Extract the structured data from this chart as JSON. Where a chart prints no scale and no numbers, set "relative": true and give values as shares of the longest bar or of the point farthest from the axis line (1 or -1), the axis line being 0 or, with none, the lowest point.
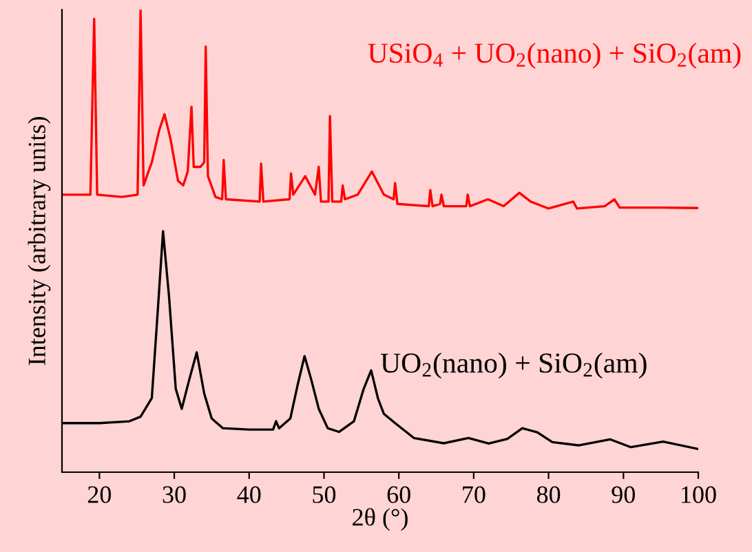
{
  "chart_data": {
    "type": "line",
    "relative": true,
    "xlabel": "2θ (°)",
    "ylabel": "Intensity (arbitrary units)",
    "xlim": [
      15,
      100
    ],
    "xticks": [
      20,
      30,
      40,
      50,
      60,
      70,
      80,
      90,
      100
    ],
    "tick_labels": "x",
    "grid": false,
    "legend": false,
    "marker": "none",
    "line_style": "solid",
    "series": [
      {
        "name": "USiO$_{4}$ + UO$_{2}$(nano) + SiO$_{2}$(am)",
        "color": "#ff0000",
        "x": [
          15,
          18.8,
          19.3,
          19.7,
          23,
          25.1,
          25.5,
          25.9,
          27,
          28.0,
          28.7,
          29.5,
          30.5,
          31.2,
          31.8,
          32.3,
          32.6,
          33.5,
          34.0,
          34.2,
          34.5,
          35.5,
          36.4,
          36.6,
          36.9,
          41.4,
          41.6,
          41.9,
          45.4,
          45.6,
          45.9,
          47.5,
          48.8,
          49.3,
          49.6,
          50.6,
          50.8,
          51.1,
          52.3,
          52.5,
          52.8,
          54.5,
          56.4,
          58,
          59.3,
          59.5,
          59.8,
          64,
          64.2,
          64.5,
          65.5,
          65.7,
          66,
          69,
          69.2,
          69.5,
          71.9,
          74,
          76.1,
          77.6,
          80,
          83.3,
          83.8,
          87.5,
          88.8,
          89.5,
          95,
          100
        ],
        "values": [
          0.6,
          0.6,
          0.98,
          0.6,
          0.595,
          0.6,
          1.0,
          0.62,
          0.67,
          0.74,
          0.774,
          0.72,
          0.63,
          0.62,
          0.65,
          0.79,
          0.66,
          0.66,
          0.67,
          0.92,
          0.64,
          0.595,
          0.59,
          0.675,
          0.59,
          0.585,
          0.667,
          0.585,
          0.59,
          0.646,
          0.6,
          0.64,
          0.6,
          0.66,
          0.585,
          0.585,
          0.77,
          0.585,
          0.585,
          0.62,
          0.59,
          0.6,
          0.65,
          0.6,
          0.59,
          0.625,
          0.58,
          0.575,
          0.61,
          0.575,
          0.58,
          0.6,
          0.575,
          0.575,
          0.6,
          0.575,
          0.59,
          0.575,
          0.604,
          0.585,
          0.57,
          0.585,
          0.57,
          0.575,
          0.59,
          0.572,
          0.572,
          0.571
        ]
      },
      {
        "name": "UO$_{2}$(nano) + SiO$_{2}$(am)",
        "color": "#000000",
        "x": [
          15,
          20,
          24,
          25.5,
          27,
          27.8,
          28.5,
          29.3,
          30.2,
          31,
          32,
          33,
          34,
          35,
          36.5,
          40,
          43.2,
          43.6,
          44,
          45.5,
          46.5,
          47.4,
          48.3,
          49.3,
          50.5,
          52,
          54,
          55.3,
          56.3,
          57.2,
          58,
          59.5,
          62,
          66,
          69.3,
          72,
          74.5,
          76.5,
          78.5,
          80.5,
          84,
          88.2,
          91,
          95.3,
          100
        ],
        "values": [
          0.106,
          0.106,
          0.11,
          0.12,
          0.16,
          0.35,
          0.521,
          0.38,
          0.18,
          0.137,
          0.2,
          0.259,
          0.17,
          0.116,
          0.095,
          0.092,
          0.092,
          0.11,
          0.095,
          0.116,
          0.19,
          0.251,
          0.2,
          0.137,
          0.095,
          0.087,
          0.11,
          0.18,
          0.22,
          0.16,
          0.126,
          0.106,
          0.074,
          0.0625,
          0.074,
          0.062,
          0.072,
          0.095,
          0.086,
          0.065,
          0.058,
          0.071,
          0.054,
          0.066,
          0.05
        ]
      }
    ]
  }
}
